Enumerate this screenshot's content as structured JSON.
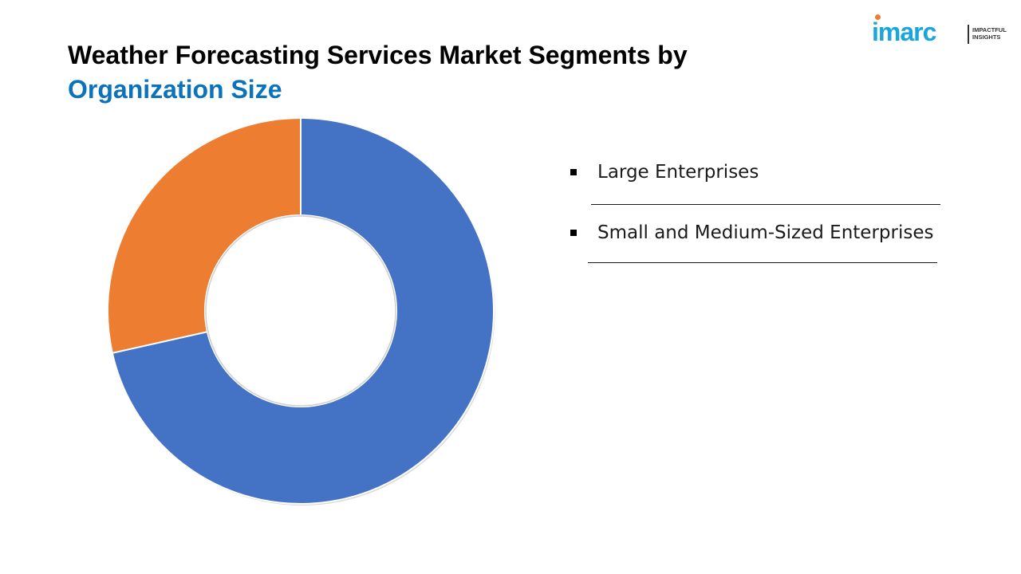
{
  "title": {
    "line1": "Weather Forecasting Services Market Segments by",
    "line2": "Organization Size"
  },
  "logo": {
    "wordmark": "imarc",
    "tagline": "IMPACTFUL INSIGHTS"
  },
  "colors": {
    "title_accent": "#0b72bc",
    "large_enterprises": "#4472c4",
    "smes": "#ed7d31",
    "logo_brand": "#1aa6dc"
  },
  "chart_data": {
    "type": "pie",
    "variant": "donut",
    "series": [
      {
        "name": "Large Enterprises",
        "value": 71.5,
        "color": "#4472c4"
      },
      {
        "name": "Small and Medium-Sized Enterprises",
        "value": 28.5,
        "color": "#ed7d31"
      }
    ],
    "start_angle_deg": 0,
    "direction": "clockwise",
    "legend_position": "right"
  }
}
